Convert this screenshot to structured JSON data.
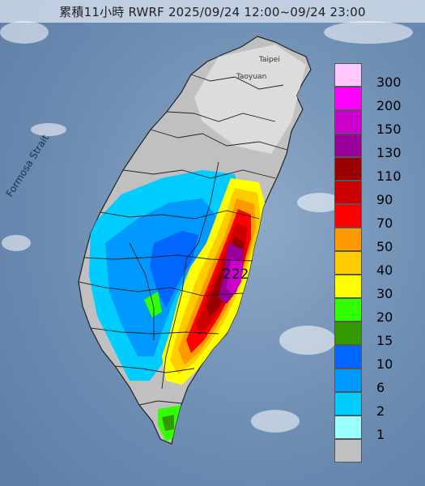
{
  "title": "累積11小時 RWRF 2025/09/24 12:00~09/24 23:00",
  "max_value_label": "222",
  "place_labels": {
    "strait": "Formosa Strait",
    "taipei": "Taipei",
    "taoyuan": "Taoyuan"
  },
  "legend": {
    "levels": [
      {
        "label": "300",
        "color": "#ffc6ff"
      },
      {
        "label": "200",
        "color": "#ff00ff"
      },
      {
        "label": "150",
        "color": "#cc00cc"
      },
      {
        "label": "130",
        "color": "#990099"
      },
      {
        "label": "110",
        "color": "#990000"
      },
      {
        "label": "90",
        "color": "#cc0000"
      },
      {
        "label": "70",
        "color": "#ff0000"
      },
      {
        "label": "50",
        "color": "#ff9900"
      },
      {
        "label": "40",
        "color": "#ffcc00"
      },
      {
        "label": "30",
        "color": "#ffff00"
      },
      {
        "label": "20",
        "color": "#33ff00"
      },
      {
        "label": "15",
        "color": "#339900"
      },
      {
        "label": "10",
        "color": "#0066ff"
      },
      {
        "label": "6",
        "color": "#0099ff"
      },
      {
        "label": "2",
        "color": "#00ccff"
      },
      {
        "label": "1",
        "color": "#99ffff"
      },
      {
        "label": "",
        "color": "#c0c0c0"
      }
    ]
  },
  "colors": {
    "sea": "#6f8fb4",
    "land_no_rain": "#c0c0c0",
    "terrain_north": "#d9d9d9",
    "boundary": "#222222"
  }
}
